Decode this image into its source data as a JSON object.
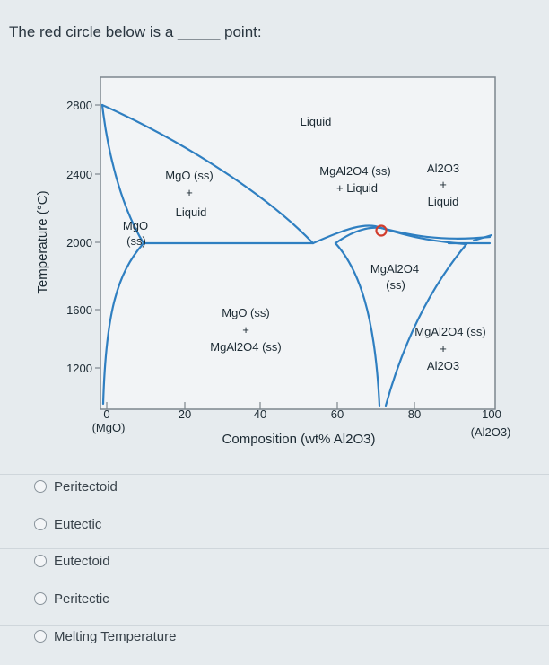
{
  "question": {
    "text": "The red circle below is a _____ point:"
  },
  "diagram": {
    "y_axis_label": "Temperature (°C)",
    "y_ticks": [
      "2800",
      "2400",
      "2000",
      "1600",
      "1200"
    ],
    "x_ticks": [
      "0",
      "20",
      "40",
      "60",
      "80",
      "100"
    ],
    "x_end_left": "(MgO)",
    "x_end_right": "(Al2O3)",
    "x_axis_label": "Composition (wt% Al2O3)",
    "regions": {
      "liquid": "Liquid",
      "mgo_ss_liquid_1": "MgO (ss)",
      "mgo_ss_liquid_2": "+",
      "mgo_ss_liquid_3": "Liquid",
      "mgo_ss_1": "MgO",
      "mgo_ss_2": "(ss)",
      "spinel_liquid_1": "MgAl2O4 (ss)",
      "spinel_liquid_2": "+ Liquid",
      "al2o3_liquid_1": "Al2O3",
      "al2o3_liquid_2": "+",
      "al2o3_liquid_3": "Liquid",
      "spinel_ss_1": "MgAl2O4",
      "spinel_ss_2": "(ss)",
      "mgo_spinel_1": "MgO (ss)",
      "mgo_spinel_2": "+",
      "mgo_spinel_3": "MgAl2O4 (ss)",
      "spinel_al2o3_1": "MgAl2O4 (ss)",
      "spinel_al2o3_2": "+",
      "spinel_al2o3_3": "Al2O3"
    },
    "colors": {
      "line": "#2f7fc1",
      "marker": "#d23c2c",
      "text": "#1c2a33"
    }
  },
  "options": [
    {
      "label": "Peritectoid"
    },
    {
      "label": "Eutectic"
    },
    {
      "label": "Eutectoid"
    },
    {
      "label": "Peritectic"
    },
    {
      "label": "Melting Temperature"
    }
  ]
}
